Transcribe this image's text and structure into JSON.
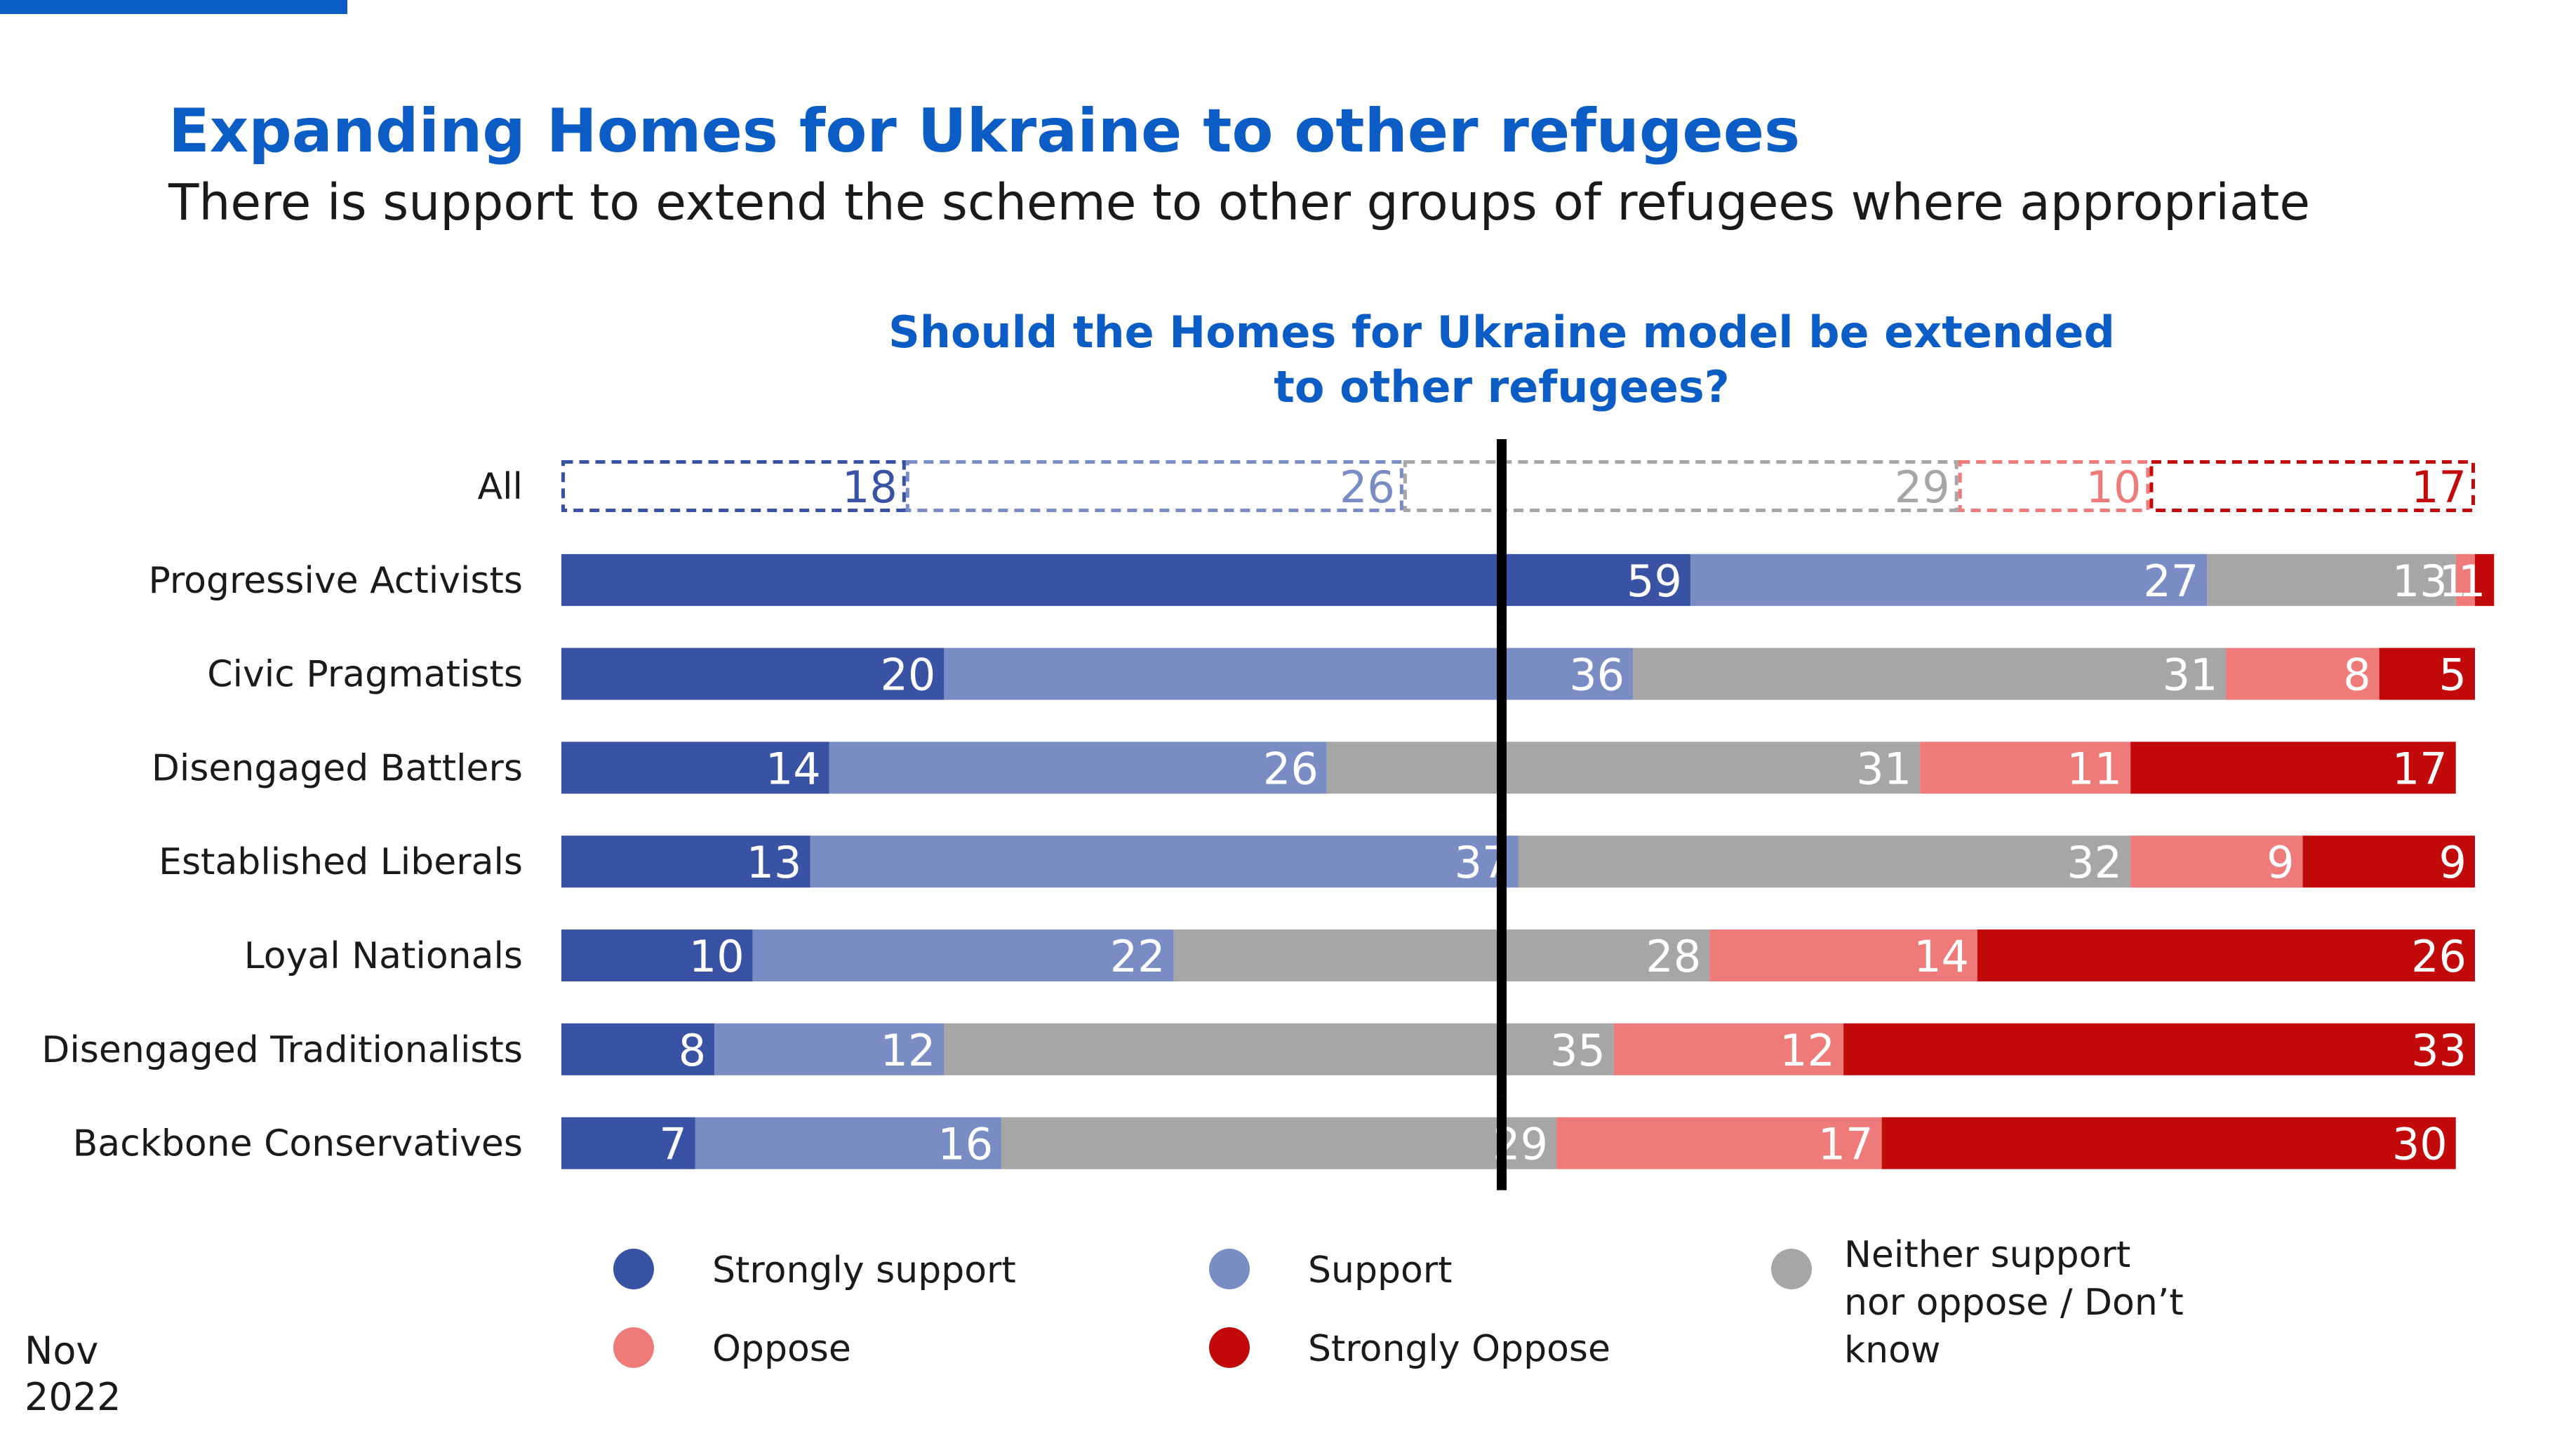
{
  "slide": {
    "title": "Expanding Homes for Ukraine to other refugees",
    "subtitle": "There is support to extend the scheme to other groups of refugees where appropriate",
    "date_month": "Nov",
    "date_year": "2022"
  },
  "colors": {
    "accent": "#0b5cc4",
    "strongly_support": "#3a52a4",
    "support": "#7a8cc4",
    "neither": "#a6a6a6",
    "oppose": "#ef7a7a",
    "strongly_oppose": "#c20a0a",
    "midline": "#000000"
  },
  "chart_data": {
    "type": "bar",
    "orientation": "horizontal",
    "stacked": true,
    "title": "Should the Homes for Ukraine model be extended to other refugees?",
    "title_lines": [
      "Should the Homes for Ukraine model be extended",
      "to other refugees?"
    ],
    "xlim": [
      0,
      100
    ],
    "grid": false,
    "legend_position": "bottom",
    "categories": [
      "All",
      "Progressive Activists",
      "Civic Pragmatists",
      "Disengaged Battlers",
      "Established Liberals",
      "Loyal Nationals",
      "Disengaged Traditionalists",
      "Backbone Conservatives"
    ],
    "outlined_category": "All",
    "series": [
      {
        "name": "Strongly support",
        "key": "strongly_support",
        "values": [
          18,
          59,
          20,
          14,
          13,
          10,
          8,
          7
        ]
      },
      {
        "name": "Support",
        "key": "support",
        "values": [
          26,
          27,
          36,
          26,
          37,
          22,
          12,
          16
        ]
      },
      {
        "name": "Neither support nor oppose / Don’t know",
        "key": "neither",
        "values": [
          29,
          13,
          31,
          31,
          32,
          28,
          35,
          29
        ]
      },
      {
        "name": "Oppose",
        "key": "oppose",
        "values": [
          10,
          1,
          8,
          11,
          9,
          14,
          12,
          17
        ]
      },
      {
        "name": "Strongly Oppose",
        "key": "strongly_oppose",
        "values": [
          17,
          1,
          5,
          17,
          9,
          26,
          33,
          30
        ]
      }
    ],
    "legend": [
      {
        "key": "strongly_support",
        "lines": [
          "Strongly support"
        ]
      },
      {
        "key": "support",
        "lines": [
          "Support"
        ]
      },
      {
        "key": "neither",
        "lines": [
          "Neither support",
          "nor oppose / Don’t",
          "know"
        ]
      },
      {
        "key": "oppose",
        "lines": [
          "Oppose"
        ]
      },
      {
        "key": "strongly_oppose",
        "lines": [
          "Strongly Oppose"
        ]
      }
    ]
  }
}
